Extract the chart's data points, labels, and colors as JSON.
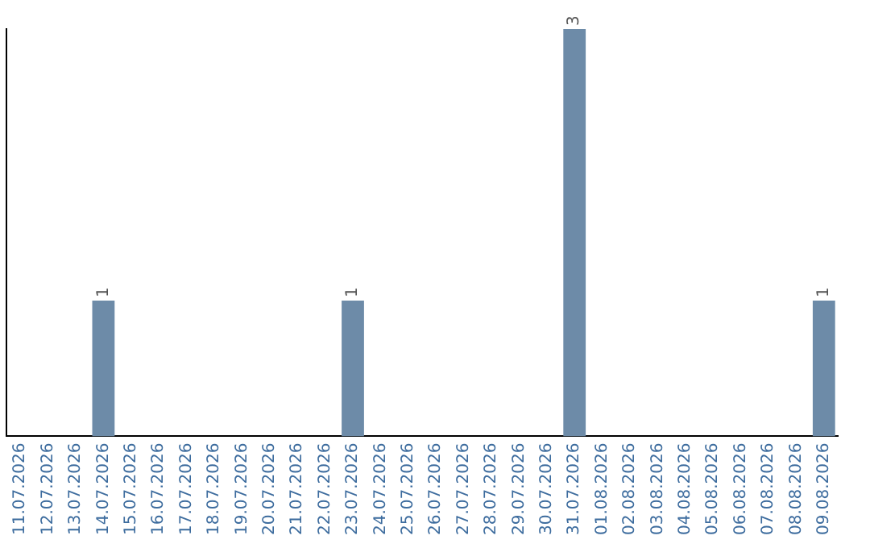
{
  "chart_data": {
    "type": "bar",
    "categories": [
      "11.07.2026",
      "12.07.2026",
      "13.07.2026",
      "14.07.2026",
      "15.07.2026",
      "16.07.2026",
      "17.07.2026",
      "18.07.2026",
      "19.07.2026",
      "20.07.2026",
      "21.07.2026",
      "22.07.2026",
      "23.07.2026",
      "24.07.2026",
      "25.07.2026",
      "26.07.2026",
      "27.07.2026",
      "28.07.2026",
      "29.07.2026",
      "30.07.2026",
      "31.07.2026",
      "01.08.2026",
      "02.08.2026",
      "03.08.2026",
      "04.08.2026",
      "05.08.2026",
      "06.08.2026",
      "07.08.2026",
      "08.08.2026",
      "09.08.2026"
    ],
    "values": [
      0,
      0,
      0,
      1,
      0,
      0,
      0,
      0,
      0,
      0,
      0,
      0,
      1,
      0,
      0,
      0,
      0,
      0,
      0,
      0,
      3,
      0,
      0,
      0,
      0,
      0,
      0,
      0,
      0,
      1
    ],
    "value_labels": [
      null,
      null,
      null,
      "1",
      null,
      null,
      null,
      null,
      null,
      null,
      null,
      null,
      "1",
      null,
      null,
      null,
      null,
      null,
      null,
      null,
      "3",
      null,
      null,
      null,
      null,
      null,
      null,
      null,
      null,
      "1"
    ],
    "color": "#6d8ba8",
    "grid": false,
    "legend": false,
    "tick_labels": "x"
  }
}
